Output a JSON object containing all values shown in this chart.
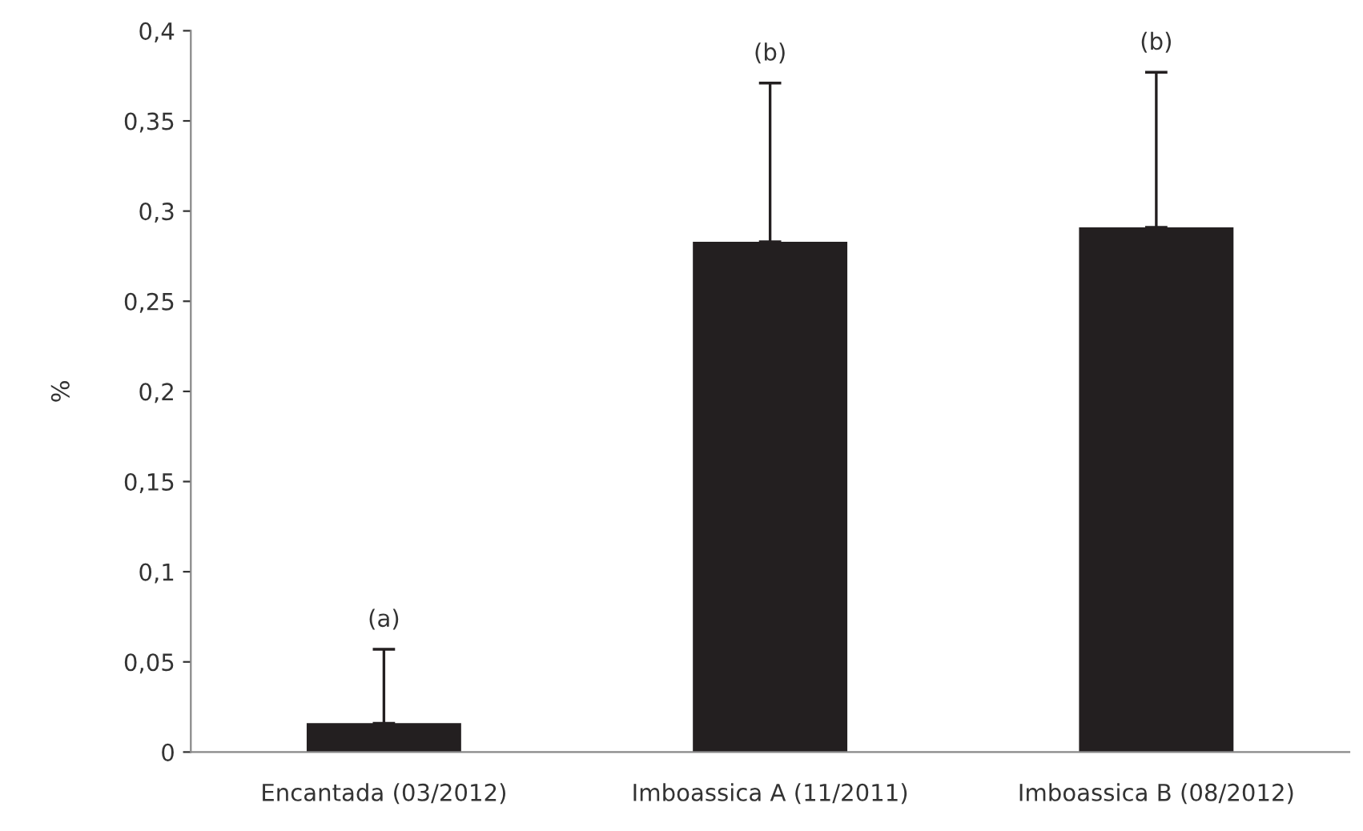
{
  "chart_data": {
    "type": "bar",
    "ylabel": "%",
    "categories": [
      "Encantada (03/2012)",
      "Imboassica A (11/2011)",
      "Imboassica B (08/2012)"
    ],
    "values": [
      0.016,
      0.283,
      0.291
    ],
    "errors": [
      [
        0.016,
        0.057
      ],
      [
        0.283,
        0.371
      ],
      [
        0.291,
        0.377
      ]
    ],
    "color": "#231f20",
    "ylim": [
      0,
      0.4
    ],
    "yticks": [
      {
        "value": 0,
        "label": "0"
      },
      {
        "value": 0.05,
        "label": "0,05"
      },
      {
        "value": 0.1,
        "label": "0,1"
      },
      {
        "value": 0.15,
        "label": "0,15"
      },
      {
        "value": 0.2,
        "label": "0,2"
      },
      {
        "value": 0.25,
        "label": "0,25"
      },
      {
        "value": 0.3,
        "label": "0,3"
      },
      {
        "value": 0.35,
        "label": "0,35"
      },
      {
        "value": 0.4,
        "label": "0,4"
      }
    ],
    "grid": false,
    "legend": false,
    "annotations": [
      "(a)",
      "(b)",
      "(b)"
    ]
  }
}
